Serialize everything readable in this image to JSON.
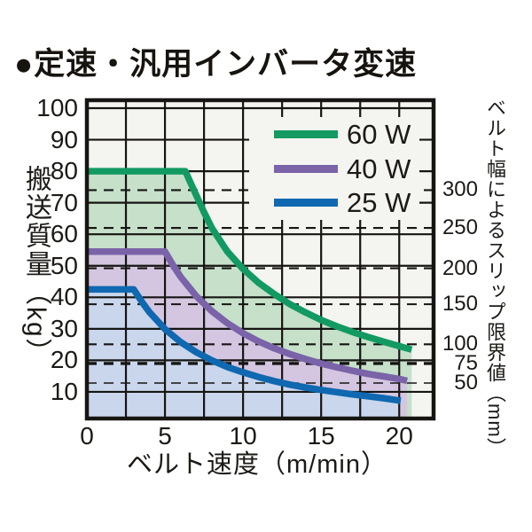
{
  "title": "●定速・汎用インバータ変速",
  "colors": {
    "page_bg": "#ffffff",
    "plot_bg": "#f4f4f1",
    "grid": "#161512",
    "text": "#1c1a16",
    "green_60w": "#129a62",
    "purple_40w": "#7a63a8",
    "blue_25w": "#0f68b0"
  },
  "chart_data": {
    "type": "line",
    "title": "定速・汎用インバータ変速",
    "xlabel": "ベルト速度（m/min）",
    "ylabel": "搬送質量（kg）",
    "ylabel_right": "ベルト幅によるスリップ限界値（mm）",
    "xlim": [
      0,
      22.2
    ],
    "ylim": [
      0,
      102.5
    ],
    "x_tick_values": [
      0,
      5,
      10,
      15,
      20
    ],
    "y_tick_values": [
      10,
      20,
      30,
      40,
      50,
      60,
      70,
      80,
      90,
      100
    ],
    "x_grid_step": 2.5,
    "grid": "on",
    "legend_position": "top-right-inside",
    "legend": [
      {
        "label": "60 W",
        "color": "#129a62"
      },
      {
        "label": "40 W",
        "color": "#7a63a8"
      },
      {
        "label": "25 W",
        "color": "#0f68b0"
      }
    ],
    "right_axis_ticks": [
      {
        "label": "300",
        "kg": 74.0,
        "style": "normal"
      },
      {
        "label": "250",
        "kg": 62.0,
        "style": "normal"
      },
      {
        "label": "200",
        "kg": 49.2,
        "style": "normal"
      },
      {
        "label": "150",
        "kg": 37.8,
        "style": "normal"
      },
      {
        "label": "100",
        "kg": 25.1,
        "style": "normal"
      },
      {
        "label": "75",
        "kg": 19.0,
        "style": "bold"
      },
      {
        "label": "50",
        "kg": 12.8,
        "style": "thin"
      }
    ],
    "series": [
      {
        "name": "60 W",
        "color": "#129a62",
        "fill": "#c6e0ca",
        "points": [
          [
            0,
            80
          ],
          [
            6.3,
            80
          ],
          [
            6.9,
            73.5
          ],
          [
            7.5,
            67
          ],
          [
            8,
            62
          ],
          [
            9,
            54.5
          ],
          [
            10,
            49
          ],
          [
            11,
            44.6
          ],
          [
            12,
            41
          ],
          [
            13,
            37.8
          ],
          [
            14,
            35.2
          ],
          [
            15,
            32.8
          ],
          [
            16,
            30.8
          ],
          [
            17,
            29
          ],
          [
            18,
            27.4
          ],
          [
            19,
            25.9
          ],
          [
            20,
            24.5
          ],
          [
            20.8,
            23.4
          ]
        ]
      },
      {
        "name": "40 W",
        "color": "#7a63a8",
        "fill": "#d4c6e0",
        "points": [
          [
            0,
            54.5
          ],
          [
            5,
            54.5
          ],
          [
            5.5,
            50.3
          ],
          [
            6,
            46.5
          ],
          [
            7,
            40.4
          ],
          [
            8,
            35.6
          ],
          [
            9,
            31.8
          ],
          [
            10,
            28.6
          ],
          [
            11,
            26
          ],
          [
            12,
            23.8
          ],
          [
            13,
            22
          ],
          [
            14,
            20.4
          ],
          [
            15,
            19
          ],
          [
            16,
            17.8
          ],
          [
            17,
            16.7
          ],
          [
            18,
            15.7
          ],
          [
            19,
            14.9
          ],
          [
            20,
            14.1
          ],
          [
            20.5,
            13.5
          ]
        ]
      },
      {
        "name": "25 W",
        "color": "#0f68b0",
        "fill": "#c9d6ec",
        "points": [
          [
            0,
            42.5
          ],
          [
            3,
            42.5
          ],
          [
            3.6,
            38
          ],
          [
            4,
            35.3
          ],
          [
            5,
            29.9
          ],
          [
            6,
            25.8
          ],
          [
            7,
            22.6
          ],
          [
            8,
            20
          ],
          [
            9,
            17.9
          ],
          [
            10,
            16.2
          ],
          [
            11,
            14.7
          ],
          [
            12,
            13.4
          ],
          [
            13,
            12.3
          ],
          [
            14,
            11.4
          ],
          [
            15,
            10.6
          ],
          [
            16,
            9.9
          ],
          [
            17,
            9.2
          ],
          [
            18,
            8.6
          ],
          [
            19,
            8
          ],
          [
            20.1,
            7.2
          ]
        ]
      }
    ]
  }
}
